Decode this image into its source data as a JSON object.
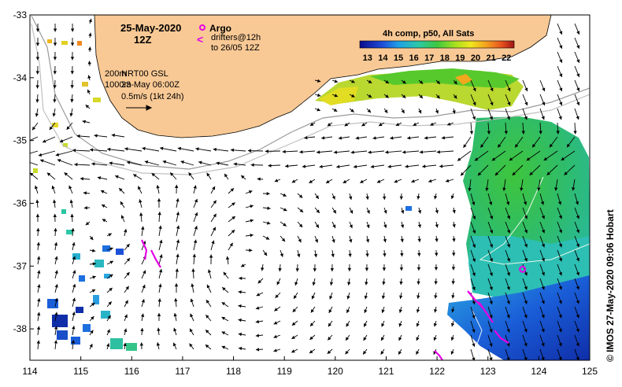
{
  "title": {
    "date": "25-May-2020",
    "hour": "12Z"
  },
  "legend": {
    "argo_label": "Argo",
    "drifter_label": "drifters@12h",
    "drifter_sub": "to 26/05 12Z",
    "isobath_200": "200m",
    "isobath_1000": "1000m",
    "product": "NRT00 GSL",
    "product_time": "23-May 06:00Z",
    "scale_label": "0.5m/s (1kt 24h)"
  },
  "colorbar": {
    "title": "4h comp, p50, All Sats",
    "ticks": [
      "13",
      "14",
      "15",
      "16",
      "17",
      "18",
      "19",
      "20",
      "21",
      "22"
    ],
    "min": 12.5,
    "max": 22.5
  },
  "credit": "© IMOS 27-May-2020 09:06 Hobart",
  "axes": {
    "lon_ticks": [
      "114",
      "115",
      "116",
      "117",
      "118",
      "119",
      "120",
      "121",
      "122",
      "123",
      "124",
      "125"
    ],
    "lat_ticks": [
      "-33",
      "-34",
      "-35",
      "-36",
      "-37",
      "-38"
    ],
    "lon_range": [
      114,
      125
    ],
    "lat_range": [
      -38.5,
      -33
    ]
  },
  "colors": {
    "land": "#f9c995",
    "argo": "#e600e6",
    "drifter": "#e600e6",
    "arrow": "#000000",
    "isobath": "#9a9a9a"
  },
  "argo_float": {
    "lon": 123.68,
    "lat": -37.05
  }
}
